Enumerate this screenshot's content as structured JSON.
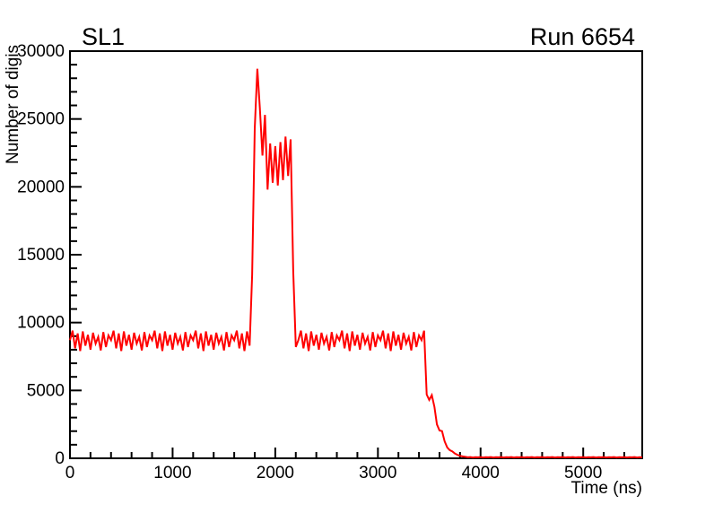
{
  "page": {
    "background": "#ffffff",
    "frame_color": "#000000"
  },
  "chart_data": {
    "type": "line",
    "title": "SL1",
    "annotation": "Run 6654",
    "xlabel": "Time (ns)",
    "ylabel": "Number of digis",
    "xlim": [
      0,
      5575
    ],
    "ylim": [
      0,
      30000
    ],
    "grid": false,
    "legend": "none",
    "line_color": "#ff0000",
    "line_width": 2,
    "x_ticks": {
      "major_step": 1000,
      "minor_step": 200,
      "values": [
        0,
        1000,
        2000,
        3000,
        4000,
        5000
      ],
      "labels": [
        "0",
        "1000",
        "2000",
        "3000",
        "4000",
        "5000"
      ]
    },
    "y_ticks": {
      "major_step": 5000,
      "minor_step": 1000,
      "values": [
        0,
        5000,
        10000,
        15000,
        20000,
        25000,
        30000
      ],
      "labels": [
        "0",
        "5000",
        "10000",
        "15000",
        "20000",
        "25000",
        "30000"
      ]
    },
    "series": {
      "name": "digis-vs-time",
      "x_start": 0,
      "x_step": 25,
      "segments": [
        {
          "kind": "pattern",
          "until": 1750,
          "pattern": [
            8700,
            9400,
            8100,
            9200,
            7900,
            9350,
            8300,
            9100,
            8000,
            9250,
            8450,
            8950,
            7950,
            9300,
            8200,
            9050
          ]
        },
        {
          "kind": "values",
          "values": [
            13500,
            24300,
            28700,
            25800,
            22300,
            25300,
            19800,
            23200,
            20300,
            23000,
            20100,
            23300,
            20500,
            23700,
            20800,
            23500,
            13800,
            8200
          ]
        },
        {
          "kind": "pattern",
          "until": 3450,
          "pattern": [
            8700,
            9400,
            8100,
            9200,
            7900,
            9350,
            8300,
            9100,
            8000,
            9250,
            8450,
            8950,
            7950,
            9300,
            8200,
            9050
          ]
        },
        {
          "kind": "values",
          "values": [
            4700,
            4300,
            4650,
            3800,
            2500,
            2050,
            2000,
            1250,
            800,
            600,
            500,
            350,
            250,
            180,
            140,
            110
          ]
        },
        {
          "kind": "pattern",
          "until": 5575,
          "pattern": [
            70,
            95,
            60,
            85
          ]
        }
      ]
    }
  }
}
